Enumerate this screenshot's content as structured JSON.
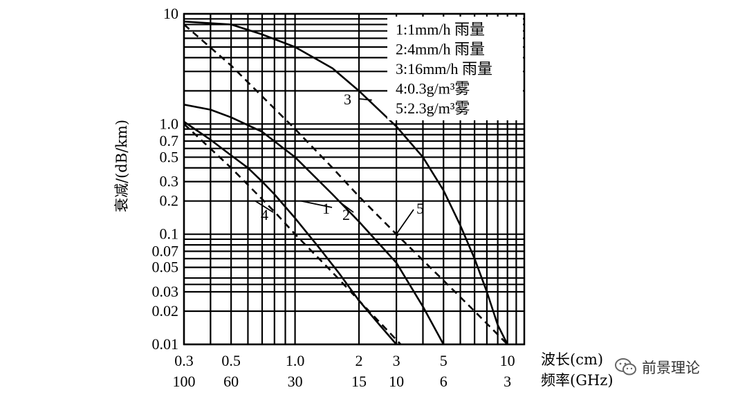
{
  "chart_data": {
    "type": "line",
    "xscale": "log",
    "yscale": "log",
    "xlim": [
      0.3,
      12
    ],
    "ylim": [
      0.01,
      10
    ],
    "grid": true,
    "ylabel": "衰减/(dB/km)",
    "xlabel": "波长(cm)",
    "xlabel2": "频率(GHz)",
    "x_tick_labels": [
      {
        "x": 0.3,
        "label": "0.3"
      },
      {
        "x": 0.5,
        "label": "0.5"
      },
      {
        "x": 1.0,
        "label": "1.0"
      },
      {
        "x": 2,
        "label": "2"
      },
      {
        "x": 3,
        "label": "3"
      },
      {
        "x": 5,
        "label": "5"
      },
      {
        "x": 10,
        "label": "10"
      }
    ],
    "freq_tick_labels": [
      {
        "x": 0.3,
        "label": "100"
      },
      {
        "x": 0.5,
        "label": "60"
      },
      {
        "x": 1.0,
        "label": "30"
      },
      {
        "x": 2,
        "label": "15"
      },
      {
        "x": 3,
        "label": "10"
      },
      {
        "x": 5,
        "label": "6"
      },
      {
        "x": 10,
        "label": "3"
      }
    ],
    "y_tick_labels": [
      {
        "y": 10,
        "label": "10"
      },
      {
        "y": 1,
        "label": "1.0"
      },
      {
        "y": 0.7,
        "label": "0.7"
      },
      {
        "y": 0.5,
        "label": "0.5"
      },
      {
        "y": 0.3,
        "label": "0.3"
      },
      {
        "y": 0.2,
        "label": "0.2"
      },
      {
        "y": 0.1,
        "label": "0.1"
      },
      {
        "y": 0.07,
        "label": "0.07"
      },
      {
        "y": 0.05,
        "label": "0.05"
      },
      {
        "y": 0.03,
        "label": "0.03"
      },
      {
        "y": 0.02,
        "label": "0.02"
      },
      {
        "y": 0.01,
        "label": "0.01"
      }
    ],
    "x_grid": [
      0.3,
      0.4,
      0.5,
      0.6,
      0.7,
      0.8,
      0.9,
      1,
      2,
      3,
      4,
      5,
      6,
      7,
      8,
      9,
      10,
      11
    ],
    "y_grid": [
      0.01,
      0.02,
      0.03,
      0.035,
      0.04,
      0.05,
      0.06,
      0.07,
      0.08,
      0.09,
      0.1,
      0.2,
      0.3,
      0.4,
      0.5,
      0.6,
      0.7,
      0.8,
      0.9,
      1,
      2,
      3,
      4,
      5,
      6,
      7,
      8,
      9,
      10
    ],
    "legend": [
      {
        "text": "1:1mm/h 雨量"
      },
      {
        "text": "2:4mm/h 雨量"
      },
      {
        "text": "3:16mm/h 雨量"
      },
      {
        "text": "4:0.3g/m³雾"
      },
      {
        "text": "5:2.3g/m³雾"
      }
    ],
    "legend_position": "top-right",
    "series": [
      {
        "name": "1",
        "style": "solid",
        "label": "1",
        "x": [
          0.3,
          0.4,
          0.5,
          0.6,
          0.7,
          0.8,
          1.0,
          1.3,
          1.6,
          2.0,
          2.5,
          3.0
        ],
        "y": [
          1.05,
          0.72,
          0.52,
          0.4,
          0.3,
          0.23,
          0.14,
          0.075,
          0.045,
          0.025,
          0.015,
          0.01
        ]
      },
      {
        "name": "2",
        "style": "solid",
        "label": "2",
        "x": [
          0.3,
          0.4,
          0.5,
          0.7,
          1.0,
          1.5,
          2.0,
          3.0,
          4.0,
          5.0
        ],
        "y": [
          1.5,
          1.35,
          1.15,
          0.85,
          0.5,
          0.23,
          0.13,
          0.055,
          0.022,
          0.01
        ]
      },
      {
        "name": "3",
        "style": "solid",
        "label": "3",
        "x": [
          0.3,
          0.5,
          0.7,
          1.0,
          1.5,
          2.0,
          3.0,
          4.0,
          5.0,
          6.0,
          7.0,
          8.0,
          9.0,
          10.0
        ],
        "y": [
          8.5,
          8.0,
          6.5,
          5.0,
          3.2,
          2.0,
          0.95,
          0.5,
          0.25,
          0.12,
          0.06,
          0.03,
          0.015,
          0.01
        ]
      },
      {
        "name": "4",
        "style": "dashed",
        "label": "4",
        "x": [
          0.3,
          0.5,
          0.8,
          1.0,
          1.5,
          2.0,
          3.0,
          4.4
        ],
        "y": [
          1.0,
          0.4,
          0.16,
          0.1,
          0.045,
          0.025,
          0.011,
          0.005
        ]
      },
      {
        "name": "5",
        "style": "dashed",
        "label": "5",
        "x": [
          0.3,
          0.5,
          1.0,
          1.5,
          2.0,
          3.0,
          4.0,
          5.0,
          7.0,
          10.0,
          12.0
        ],
        "y": [
          8.0,
          3.4,
          0.9,
          0.4,
          0.22,
          0.1,
          0.058,
          0.038,
          0.02,
          0.01,
          0.007
        ]
      }
    ]
  },
  "watermark": {
    "text": "前景理论",
    "icon": "wechat-icon"
  }
}
